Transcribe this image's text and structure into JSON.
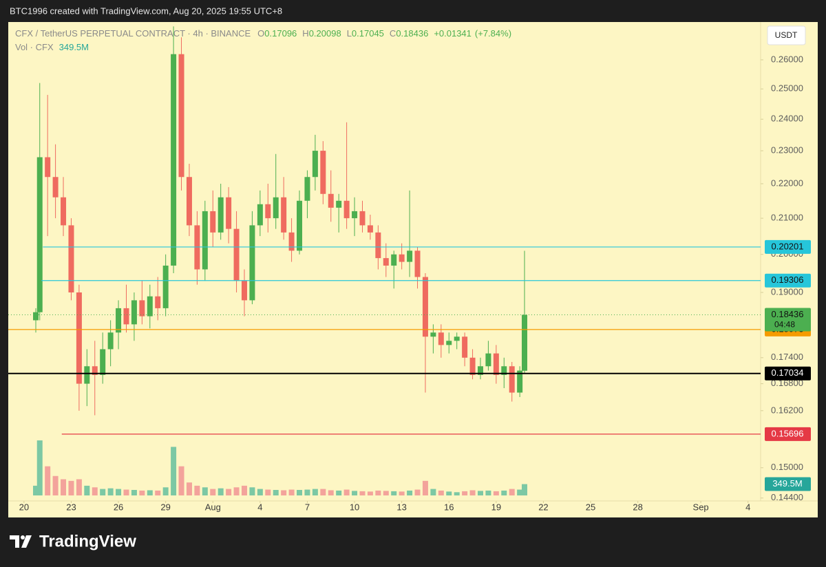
{
  "header": {
    "attribution": "BTC1996 created with TradingView.com, Aug 20, 2025 19:55 UTC+8"
  },
  "footer": {
    "brand": "TradingView"
  },
  "chart_data": {
    "type": "candlestick",
    "title": "CFX / TetherUS PERPETUAL CONTRACT · 4h · BINANCE",
    "ohlc_keys": [
      "O",
      "H",
      "L",
      "C"
    ],
    "change": {
      "value": 0.01341,
      "label": "+0.01341"
    },
    "change_pct": {
      "value": 7.84,
      "label": "(+7.84%)"
    },
    "volume_title": "Vol · CFX",
    "volume_label": "349.5M",
    "currency_button": "USDT",
    "countdown": "04:48",
    "log_scale": true,
    "up_color": "#4caf50",
    "down_color": "#ef6b5f",
    "volume_up_color": "#7cc8a4",
    "volume_down_color": "#f3a39b",
    "x": [
      0.75,
      1.0,
      1.5,
      2.0,
      2.5,
      3.0,
      3.5,
      4.0,
      4.5,
      5.0,
      5.5,
      6.0,
      6.5,
      7.0,
      7.5,
      8.0,
      8.5,
      9.0,
      9.5,
      10.0,
      10.5,
      11.0,
      11.5,
      12.0,
      12.5,
      13.0,
      13.5,
      14.0,
      14.5,
      15.0,
      15.5,
      16.0,
      16.5,
      17.0,
      17.5,
      18.0,
      18.5,
      19.0,
      19.5,
      20.0,
      20.5,
      21.0,
      21.5,
      22.0,
      22.5,
      23.0,
      23.5,
      24.0,
      24.5,
      25.0,
      25.5,
      26.0,
      26.5,
      27.0,
      27.5,
      28.0,
      28.5,
      29.0,
      29.5,
      30.0,
      30.5,
      31.0,
      31.5,
      31.8
    ],
    "open": [
      0.183,
      0.185,
      0.228,
      0.222,
      0.216,
      0.208,
      0.19,
      0.168,
      0.172,
      0.17,
      0.176,
      0.18,
      0.186,
      0.182,
      0.188,
      0.184,
      0.189,
      0.186,
      0.197,
      0.262,
      0.222,
      0.208,
      0.196,
      0.212,
      0.206,
      0.216,
      0.207,
      0.193,
      0.188,
      0.208,
      0.214,
      0.21,
      0.216,
      0.206,
      0.201,
      0.215,
      0.222,
      0.23,
      0.217,
      0.213,
      0.215,
      0.21,
      0.212,
      0.208,
      0.206,
      0.199,
      0.197,
      0.2,
      0.198,
      0.201,
      0.194,
      0.179,
      0.18,
      0.177,
      0.178,
      0.179,
      0.174,
      0.17,
      0.172,
      0.175,
      0.17,
      0.172,
      0.166,
      0.17096
    ],
    "high": [
      0.186,
      0.252,
      0.248,
      0.232,
      0.222,
      0.21,
      0.192,
      0.176,
      0.178,
      0.18,
      0.183,
      0.188,
      0.192,
      0.19,
      0.193,
      0.192,
      0.194,
      0.2,
      0.272,
      0.268,
      0.226,
      0.212,
      0.215,
      0.218,
      0.22,
      0.219,
      0.212,
      0.196,
      0.212,
      0.218,
      0.22,
      0.229,
      0.222,
      0.21,
      0.218,
      0.224,
      0.235,
      0.233,
      0.224,
      0.217,
      0.239,
      0.216,
      0.215,
      0.211,
      0.208,
      0.203,
      0.201,
      0.203,
      0.218,
      0.202,
      0.195,
      0.182,
      0.182,
      0.18,
      0.18,
      0.18,
      0.176,
      0.174,
      0.178,
      0.177,
      0.174,
      0.173,
      0.172,
      0.20098
    ],
    "low": [
      0.18,
      0.183,
      0.205,
      0.21,
      0.205,
      0.188,
      0.162,
      0.163,
      0.161,
      0.168,
      0.172,
      0.176,
      0.18,
      0.178,
      0.182,
      0.181,
      0.183,
      0.184,
      0.195,
      0.218,
      0.205,
      0.192,
      0.193,
      0.202,
      0.204,
      0.203,
      0.19,
      0.184,
      0.187,
      0.205,
      0.206,
      0.207,
      0.204,
      0.198,
      0.2,
      0.21,
      0.218,
      0.214,
      0.209,
      0.206,
      0.207,
      0.205,
      0.206,
      0.204,
      0.196,
      0.194,
      0.191,
      0.196,
      0.194,
      0.191,
      0.166,
      0.175,
      0.174,
      0.175,
      0.176,
      0.172,
      0.169,
      0.169,
      0.171,
      0.168,
      0.167,
      0.164,
      0.165,
      0.17045
    ],
    "close": [
      0.185,
      0.228,
      0.222,
      0.216,
      0.208,
      0.19,
      0.168,
      0.172,
      0.17,
      0.176,
      0.18,
      0.186,
      0.182,
      0.188,
      0.184,
      0.189,
      0.186,
      0.197,
      0.262,
      0.222,
      0.208,
      0.196,
      0.212,
      0.206,
      0.216,
      0.207,
      0.193,
      0.188,
      0.208,
      0.214,
      0.21,
      0.216,
      0.206,
      0.201,
      0.215,
      0.222,
      0.23,
      0.217,
      0.213,
      0.215,
      0.21,
      0.212,
      0.208,
      0.206,
      0.199,
      0.197,
      0.2,
      0.198,
      0.201,
      0.194,
      0.179,
      0.18,
      0.177,
      0.178,
      0.179,
      0.174,
      0.17,
      0.172,
      0.175,
      0.17,
      0.172,
      0.166,
      0.171,
      0.18436
    ],
    "volume": [
      300000000,
      1700000000,
      900000000,
      600000000,
      500000000,
      450000000,
      500000000,
      300000000,
      250000000,
      200000000,
      220000000,
      200000000,
      180000000,
      170000000,
      150000000,
      160000000,
      150000000,
      250000000,
      1500000000,
      900000000,
      400000000,
      300000000,
      250000000,
      200000000,
      220000000,
      200000000,
      250000000,
      300000000,
      250000000,
      200000000,
      180000000,
      170000000,
      160000000,
      180000000,
      170000000,
      180000000,
      200000000,
      200000000,
      160000000,
      150000000,
      180000000,
      140000000,
      130000000,
      120000000,
      150000000,
      140000000,
      130000000,
      120000000,
      150000000,
      180000000,
      450000000,
      200000000,
      150000000,
      120000000,
      100000000,
      130000000,
      160000000,
      140000000,
      150000000,
      130000000,
      150000000,
      200000000,
      180000000,
      349500000
    ],
    "ylim": [
      0.1437,
      0.2736
    ],
    "yticks": [
      {
        "value": 0.26,
        "label": "0.26000"
      },
      {
        "value": 0.25,
        "label": "0.25000"
      },
      {
        "value": 0.24,
        "label": "0.24000"
      },
      {
        "value": 0.23,
        "label": "0.23000"
      },
      {
        "value": 0.22,
        "label": "0.22000"
      },
      {
        "value": 0.21,
        "label": "0.21000"
      },
      {
        "value": 0.2,
        "label": "0.20000"
      },
      {
        "value": 0.19,
        "label": "0.19000"
      },
      {
        "value": 0.174,
        "label": "0.17400"
      },
      {
        "value": 0.168,
        "label": "0.16800"
      },
      {
        "value": 0.162,
        "label": "0.16200"
      },
      {
        "value": 0.15,
        "label": "0.15000"
      },
      {
        "value": 0.144,
        "label": "0.14400"
      }
    ],
    "xlim": [
      -1,
      46.8
    ],
    "xticks": [
      {
        "value": 0,
        "label": "20"
      },
      {
        "value": 3,
        "label": "23"
      },
      {
        "value": 6,
        "label": "26"
      },
      {
        "value": 9,
        "label": "29"
      },
      {
        "value": 12,
        "label": "Aug"
      },
      {
        "value": 15,
        "label": "4"
      },
      {
        "value": 18,
        "label": "7"
      },
      {
        "value": 21,
        "label": "10"
      },
      {
        "value": 24,
        "label": "13"
      },
      {
        "value": 27,
        "label": "16"
      },
      {
        "value": 30,
        "label": "19"
      },
      {
        "value": 33,
        "label": "22"
      },
      {
        "value": 36,
        "label": "25"
      },
      {
        "value": 39,
        "label": "28"
      },
      {
        "value": 43,
        "label": "Sep"
      },
      {
        "value": 46,
        "label": "4"
      }
    ],
    "hlines": [
      {
        "value": 0.20201,
        "start": 1.2,
        "color": "#26c6da"
      },
      {
        "value": 0.19306,
        "start": 1.1,
        "color": "#26c6da"
      },
      {
        "value": 0.18073,
        "start": -1,
        "color": "#f59b00"
      },
      {
        "value": 0.17034,
        "start": -1,
        "color": "#000000"
      },
      {
        "value": 0.15696,
        "start": 2.4,
        "color": "#e53945"
      }
    ]
  }
}
